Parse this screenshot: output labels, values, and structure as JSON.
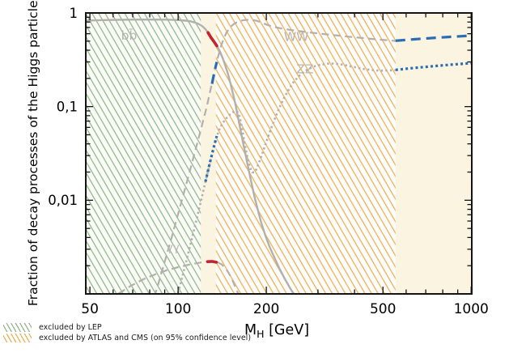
{
  "figure": {
    "y_axis_title": "Fraction of decay processes of the Higgs particle",
    "x_axis_title_main": "M",
    "x_axis_title_sub": "H",
    "x_axis_title_unit": " [GeV]"
  },
  "legend": {
    "items": [
      {
        "id": "lep",
        "label": "excluded by LEP",
        "hatch_color": "#8bb383",
        "fill_color": "#fafbf7"
      },
      {
        "id": "atlas-cms",
        "label": "excluded by ATLAS and CMS (on 95% confidence level)",
        "hatch_color": "#edaa48",
        "fill_color": "#fefdfb"
      }
    ]
  },
  "colors": {
    "plot_background": "#faf4e1",
    "curve_gray": "#b2b0ac",
    "label_gray": "#b7b5b1",
    "highlight_blue": "#2a6db5",
    "highlight_red": "#c42132",
    "axis": "#141414"
  },
  "chart_data": {
    "type": "line",
    "xscale": "log",
    "yscale": "log",
    "xlim": [
      48.4,
      1005
    ],
    "ylim": [
      0.001,
      1.0
    ],
    "xlabel": "M_H [GeV]",
    "ylabel": "Fraction of decay processes of the Higgs particle",
    "x_axis": {
      "ticks_major": [
        {
          "value": 50,
          "label": "50"
        },
        {
          "value": 100,
          "label": "100"
        },
        {
          "value": 200,
          "label": "200"
        },
        {
          "value": 500,
          "label": "500"
        },
        {
          "value": 1000,
          "label": "1000"
        }
      ],
      "ticks_minor": [
        60,
        70,
        80,
        90,
        300,
        400,
        600,
        700,
        800,
        900
      ]
    },
    "y_axis": {
      "ticks_major": [
        {
          "value": 1,
          "label": "1"
        },
        {
          "value": 0.1,
          "label": "0,1"
        },
        {
          "value": 0.01,
          "label": "0,01"
        },
        {
          "value": 0.001,
          "label": ""
        }
      ],
      "ticks_minor": [
        0.9,
        0.8,
        0.7,
        0.6,
        0.5,
        0.4,
        0.3,
        0.2,
        0.09,
        0.08,
        0.07,
        0.06,
        0.05,
        0.04,
        0.03,
        0.02,
        0.009,
        0.008,
        0.007,
        0.006,
        0.005,
        0.004,
        0.003,
        0.002
      ]
    },
    "excluded_regions": [
      {
        "name": "excluded by LEP",
        "x_from": 48.4,
        "x_to": 119.5,
        "legend_index": 0
      },
      {
        "name": "excluded by ATLAS and CMS (on 95% confidence level)",
        "x_from": 134.5,
        "x_to": 552,
        "legend_index": 1
      }
    ],
    "curve_labels": [
      {
        "text": "bb̄",
        "x": 68,
        "y": 0.565,
        "size": 15.5
      },
      {
        "text": "WW",
        "x": 253,
        "y": 0.55,
        "size": 15.5
      },
      {
        "text": "ZZ",
        "x": 271,
        "y": 0.248,
        "size": 15.5
      },
      {
        "text": "γγ",
        "x": 96,
        "y": 0.0031,
        "size": 13.5
      }
    ],
    "series": [
      {
        "name": "bb",
        "style": "solid",
        "color": "gray",
        "points": [
          [
            48.4,
            0.828
          ],
          [
            54,
            0.838
          ],
          [
            62,
            0.845
          ],
          [
            72,
            0.849
          ],
          [
            82,
            0.85
          ],
          [
            92,
            0.847
          ],
          [
            100,
            0.84
          ],
          [
            106,
            0.828
          ],
          [
            111,
            0.81
          ],
          [
            115,
            0.785
          ],
          [
            118,
            0.758
          ],
          [
            121,
            0.722
          ],
          [
            124,
            0.672
          ],
          [
            127,
            0.607
          ],
          [
            130,
            0.538
          ],
          [
            133,
            0.487
          ],
          [
            136,
            0.44
          ],
          [
            139,
            0.386
          ],
          [
            142,
            0.328
          ],
          [
            145,
            0.272
          ],
          [
            148,
            0.222
          ],
          [
            151,
            0.176
          ],
          [
            154,
            0.136
          ],
          [
            157,
            0.104
          ],
          [
            160,
            0.078
          ],
          [
            163,
            0.058
          ],
          [
            166,
            0.0435
          ],
          [
            170,
            0.0302
          ],
          [
            174,
            0.0213
          ],
          [
            178,
            0.0152
          ],
          [
            182,
            0.0111
          ],
          [
            187,
            0.0079
          ],
          [
            192,
            0.0058
          ],
          [
            198,
            0.0043
          ],
          [
            205,
            0.0032
          ],
          [
            213,
            0.00245
          ],
          [
            222,
            0.00185
          ],
          [
            232,
            0.00142
          ],
          [
            242,
            0.00113
          ],
          [
            252,
            0.00093
          ]
        ]
      },
      {
        "name": "ww",
        "style": "dashed",
        "color": "gray",
        "points": [
          [
            83,
            0.00093
          ],
          [
            86,
            0.00135
          ],
          [
            89,
            0.00196
          ],
          [
            92,
            0.0028
          ],
          [
            95,
            0.004
          ],
          [
            98,
            0.0057
          ],
          [
            101,
            0.008
          ],
          [
            104,
            0.0112
          ],
          [
            107,
            0.0155
          ],
          [
            110,
            0.0213
          ],
          [
            113,
            0.0292
          ],
          [
            116,
            0.0398
          ],
          [
            119,
            0.054
          ],
          [
            122,
            0.0725
          ],
          [
            125,
            0.097
          ],
          [
            128,
            0.135
          ],
          [
            131,
            0.19
          ],
          [
            134,
            0.26
          ],
          [
            137,
            0.345
          ],
          [
            140,
            0.44
          ],
          [
            143,
            0.53
          ],
          [
            146,
            0.61
          ],
          [
            149,
            0.675
          ],
          [
            152,
            0.725
          ],
          [
            155,
            0.762
          ],
          [
            158,
            0.79
          ],
          [
            162,
            0.815
          ],
          [
            166,
            0.832
          ],
          [
            170,
            0.842
          ],
          [
            175,
            0.845
          ],
          [
            180,
            0.838
          ],
          [
            185,
            0.826
          ],
          [
            190,
            0.804
          ],
          [
            195,
            0.778
          ],
          [
            200,
            0.752
          ],
          [
            206,
            0.728
          ],
          [
            212,
            0.711
          ],
          [
            220,
            0.693
          ],
          [
            230,
            0.675
          ],
          [
            242,
            0.658
          ],
          [
            256,
            0.642
          ],
          [
            272,
            0.627
          ],
          [
            290,
            0.612
          ],
          [
            310,
            0.598
          ],
          [
            332,
            0.584
          ],
          [
            356,
            0.571
          ],
          [
            382,
            0.558
          ],
          [
            410,
            0.546
          ],
          [
            440,
            0.535
          ],
          [
            472,
            0.524
          ],
          [
            510,
            0.513
          ],
          [
            552,
            0.502
          ]
        ]
      },
      {
        "name": "zz",
        "style": "dotted",
        "color": "gray",
        "points": [
          [
            99,
            0.00092
          ],
          [
            102,
            0.0013
          ],
          [
            105,
            0.00185
          ],
          [
            108,
            0.00263
          ],
          [
            111,
            0.0037
          ],
          [
            114,
            0.0052
          ],
          [
            117,
            0.0073
          ],
          [
            120,
            0.0102
          ],
          [
            123,
            0.0142
          ],
          [
            126,
            0.0196
          ],
          [
            129,
            0.0267
          ],
          [
            132,
            0.0358
          ],
          [
            135,
            0.0465
          ],
          [
            138,
            0.0563
          ],
          [
            141,
            0.0645
          ],
          [
            145,
            0.0732
          ],
          [
            149,
            0.0802
          ],
          [
            153,
            0.0862
          ],
          [
            156,
            0.0895
          ],
          [
            158,
            0.0898
          ],
          [
            160,
            0.0865
          ],
          [
            162,
            0.0785
          ],
          [
            164,
            0.0665
          ],
          [
            166,
            0.0541
          ],
          [
            168,
            0.0437
          ],
          [
            170,
            0.0354
          ],
          [
            173,
            0.0273
          ],
          [
            176,
            0.0223
          ],
          [
            179,
            0.0199
          ],
          [
            182,
            0.0198
          ],
          [
            185,
            0.0215
          ],
          [
            189,
            0.0254
          ],
          [
            194,
            0.0318
          ],
          [
            200,
            0.0422
          ],
          [
            207,
            0.0568
          ],
          [
            214,
            0.0748
          ],
          [
            222,
            0.0985
          ],
          [
            230,
            0.124
          ],
          [
            239,
            0.154
          ],
          [
            248,
            0.183
          ],
          [
            258,
            0.211
          ],
          [
            269,
            0.236
          ],
          [
            281,
            0.256
          ],
          [
            294,
            0.271
          ],
          [
            308,
            0.281
          ],
          [
            323,
            0.287
          ],
          [
            339,
            0.288
          ],
          [
            356,
            0.284
          ],
          [
            374,
            0.276
          ],
          [
            393,
            0.267
          ],
          [
            413,
            0.258
          ],
          [
            434,
            0.251
          ],
          [
            456,
            0.246
          ],
          [
            480,
            0.243
          ],
          [
            510,
            0.2425
          ],
          [
            552,
            0.2455
          ]
        ]
      },
      {
        "name": "gamma-gamma",
        "style": "dashed",
        "color": "gray",
        "points": [
          [
            58,
            0.00086
          ],
          [
            63,
            0.00102
          ],
          [
            69,
            0.00122
          ],
          [
            76,
            0.00143
          ],
          [
            84,
            0.00163
          ],
          [
            92,
            0.0018
          ],
          [
            100,
            0.00193
          ],
          [
            108,
            0.00204
          ],
          [
            115,
            0.00212
          ],
          [
            121,
            0.00218
          ],
          [
            127,
            0.00222
          ],
          [
            132,
            0.00222
          ],
          [
            137,
            0.00216
          ],
          [
            141,
            0.00206
          ],
          [
            145,
            0.00189
          ],
          [
            149,
            0.00166
          ],
          [
            153,
            0.00141
          ],
          [
            157,
            0.00117
          ],
          [
            161,
            0.00098
          ],
          [
            164,
            0.00086
          ]
        ]
      },
      {
        "name": "ww-high-mass",
        "style": "dashed",
        "color": "blue",
        "points": [
          [
            552,
            0.505
          ],
          [
            640,
            0.524
          ],
          [
            740,
            0.541
          ],
          [
            850,
            0.556
          ],
          [
            960,
            0.568
          ],
          [
            1005,
            0.572
          ]
        ]
      },
      {
        "name": "zz-high-mass",
        "style": "dotted",
        "color": "blue",
        "points": [
          [
            552,
            0.2465
          ],
          [
            640,
            0.259
          ],
          [
            740,
            0.27
          ],
          [
            850,
            0.28
          ],
          [
            960,
            0.288
          ],
          [
            1005,
            0.291
          ]
        ]
      },
      {
        "name": "ww-highlight",
        "style": "dashed",
        "color": "blue",
        "points": [
          [
            130.5,
            0.175
          ],
          [
            133,
            0.235
          ],
          [
            135.5,
            0.3
          ]
        ]
      },
      {
        "name": "zz-highlight",
        "style": "dotted",
        "color": "blue",
        "points": [
          [
            124,
            0.0158
          ],
          [
            128,
            0.0242
          ],
          [
            132,
            0.0358
          ],
          [
            135.5,
            0.0485
          ]
        ]
      },
      {
        "name": "bb-highlight",
        "style": "solid",
        "color": "red",
        "points": [
          [
            126.5,
            0.617
          ],
          [
            129.5,
            0.545
          ],
          [
            132.5,
            0.494
          ],
          [
            135.5,
            0.446
          ]
        ]
      },
      {
        "name": "gamma-gamma-highlight",
        "style": "solid",
        "color": "red",
        "points": [
          [
            126,
            0.00221
          ],
          [
            130.5,
            0.00222
          ],
          [
            135,
            0.00218
          ]
        ]
      }
    ]
  }
}
